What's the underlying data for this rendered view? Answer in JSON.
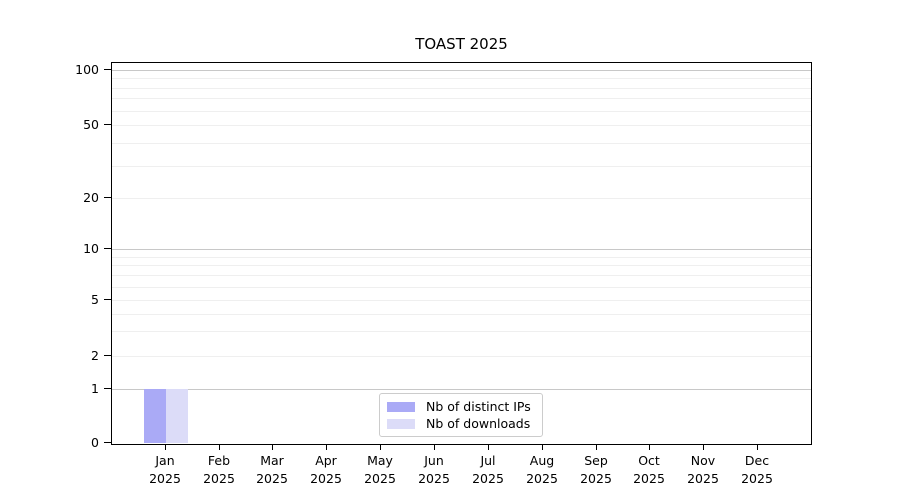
{
  "chart": {
    "title": "TOAST 2025",
    "legend": [
      {
        "label": "Nb of distinct IPs",
        "color": "#aaaaf6"
      },
      {
        "label": "Nb of downloads",
        "color": "#dcdcf8"
      }
    ]
  },
  "axes": {
    "y_ticks": [
      0,
      1,
      2,
      5,
      10,
      20,
      50,
      100
    ],
    "x_months": [
      "Jan",
      "Feb",
      "Mar",
      "Apr",
      "May",
      "Jun",
      "Jul",
      "Aug",
      "Sep",
      "Oct",
      "Nov",
      "Dec"
    ],
    "x_year": "2025"
  },
  "colors": {
    "distinct_ips": "#aaaaf6",
    "downloads": "#dcdcf8",
    "grid_major": "#c8c8c8",
    "grid_minor": "#efefef",
    "axis": "#000000",
    "legend_border": "#cccccc",
    "background": "#ffffff"
  },
  "chart_data": {
    "type": "bar",
    "title": "TOAST 2025",
    "categories": [
      "Jan 2025",
      "Feb 2025",
      "Mar 2025",
      "Apr 2025",
      "May 2025",
      "Jun 2025",
      "Jul 2025",
      "Aug 2025",
      "Sep 2025",
      "Oct 2025",
      "Nov 2025",
      "Dec 2025"
    ],
    "series": [
      {
        "name": "Nb of distinct IPs",
        "color": "#aaaaf6",
        "values": [
          1,
          0,
          0,
          0,
          0,
          0,
          0,
          0,
          0,
          0,
          0,
          0
        ]
      },
      {
        "name": "Nb of downloads",
        "color": "#dcdcf8",
        "values": [
          1,
          0,
          0,
          0,
          0,
          0,
          0,
          0,
          0,
          0,
          0,
          0
        ]
      }
    ],
    "xlabel": "",
    "ylabel": "",
    "yscale": "log-like",
    "yticks": [
      0,
      1,
      2,
      5,
      10,
      20,
      50,
      100
    ],
    "ylim": [
      0,
      100
    ],
    "grid": "horizontal major and log-minor gridlines",
    "legend_position": "bottom-center"
  }
}
